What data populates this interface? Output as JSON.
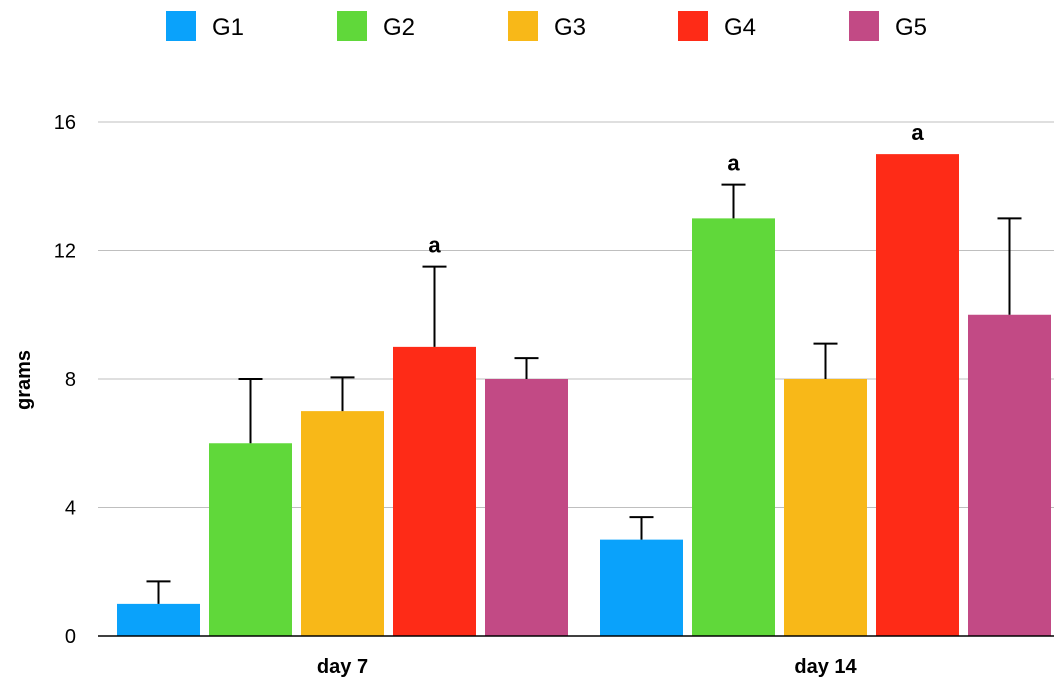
{
  "chart_data": {
    "type": "bar",
    "categories": [
      "day 7",
      "day 14"
    ],
    "series": [
      {
        "name": "G1",
        "color": "#0aa2fb",
        "values": [
          1,
          3
        ],
        "errors": [
          0.7,
          0.7
        ]
      },
      {
        "name": "G2",
        "color": "#60d83a",
        "values": [
          6,
          13
        ],
        "errors": [
          2,
          1.05
        ]
      },
      {
        "name": "G3",
        "color": "#f8b818",
        "values": [
          7,
          8
        ],
        "errors": [
          1.05,
          1.1
        ]
      },
      {
        "name": "G4",
        "color": "#fe2b17",
        "values": [
          9,
          15
        ],
        "errors": [
          2.5,
          0
        ]
      },
      {
        "name": "G5",
        "color": "#c24a85",
        "values": [
          8,
          10
        ],
        "errors": [
          0.65,
          3
        ]
      }
    ],
    "annotations": [
      {
        "series": "G4",
        "category": "day 7",
        "text": "a"
      },
      {
        "series": "G2",
        "category": "day 14",
        "text": "a"
      },
      {
        "series": "G4",
        "category": "day 14",
        "text": "a"
      }
    ],
    "xlabel": "",
    "ylabel": "grams",
    "ylim": [
      0,
      16
    ],
    "yticks": [
      0,
      4,
      8,
      12,
      16
    ],
    "grid": true,
    "legend_position": "top"
  }
}
